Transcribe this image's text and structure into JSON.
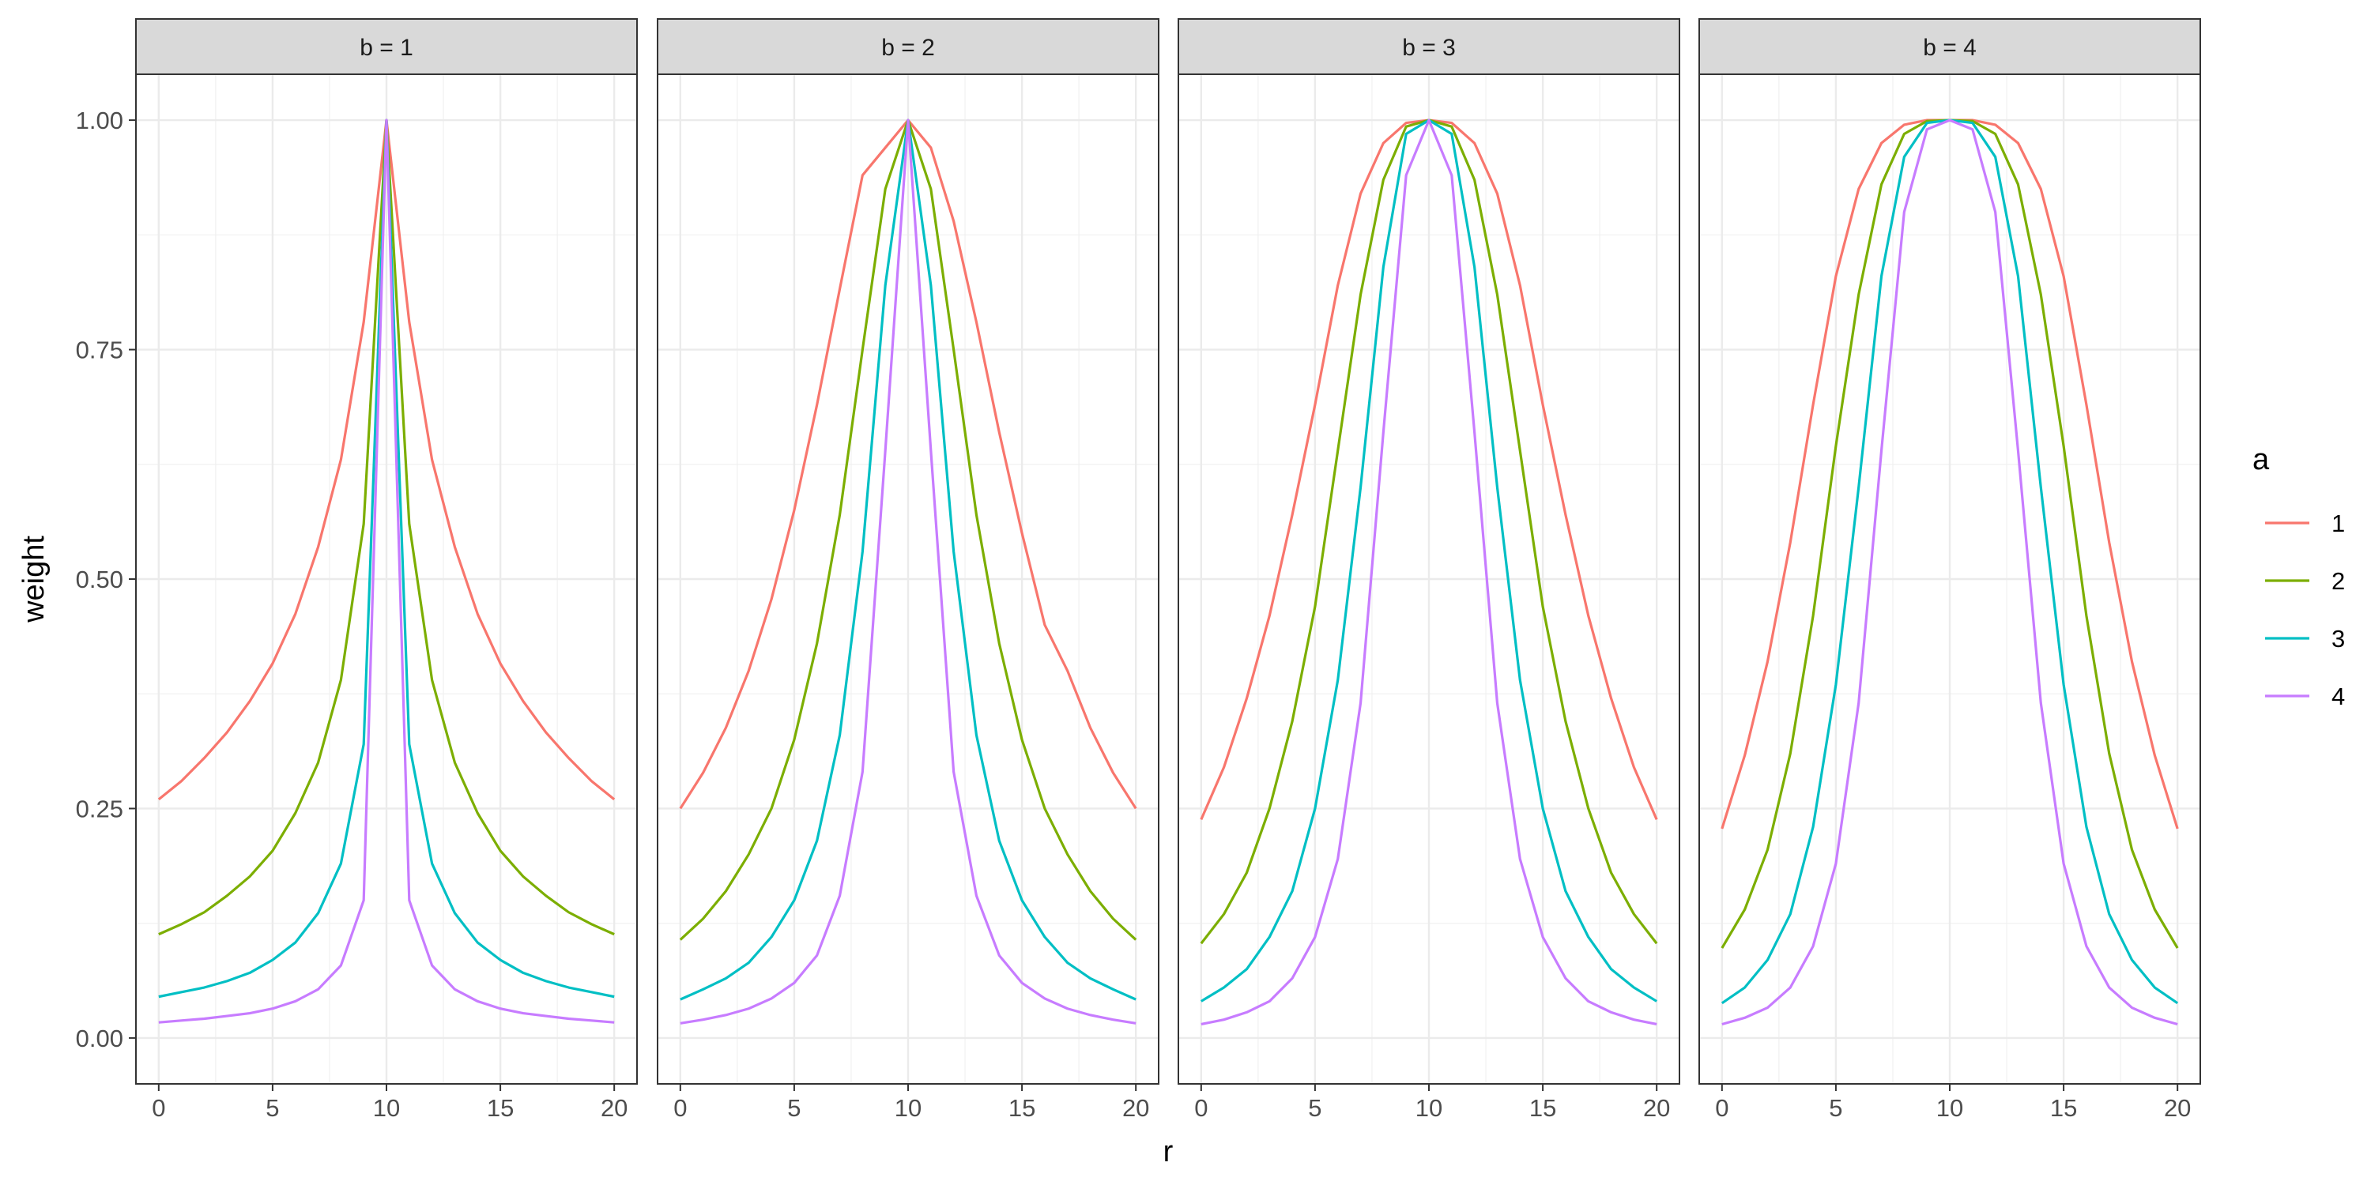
{
  "chart_data": {
    "type": "line",
    "xlabel": "r",
    "ylabel": "weight",
    "xlim": [
      -1,
      21
    ],
    "ylim": [
      -0.05,
      1.05
    ],
    "x_ticks": [
      0,
      5,
      10,
      15,
      20
    ],
    "x_tick_labels": [
      "0",
      "5",
      "10",
      "15",
      "20"
    ],
    "y_ticks": [
      0,
      0.25,
      0.5,
      0.75,
      1
    ],
    "y_tick_labels": [
      "0.00",
      "0.25",
      "0.50",
      "0.75",
      "1.00"
    ],
    "grid": true,
    "legend": {
      "title": "a",
      "placement": "right",
      "entries": [
        "1",
        "2",
        "3",
        "4"
      ]
    },
    "series_colors": [
      "#F8766D",
      "#7CAE00",
      "#00BFC4",
      "#C77CFF"
    ],
    "x": [
      0,
      1,
      2,
      3,
      4,
      5,
      6,
      7,
      8,
      9,
      10,
      11,
      12,
      13,
      14,
      15,
      16,
      17,
      18,
      19,
      20
    ],
    "facets": [
      {
        "label": "b = 1",
        "series": [
          {
            "name": "1",
            "values": [
              0.26,
              0.28,
              0.305,
              0.333,
              0.367,
              0.408,
              0.462,
              0.535,
              0.63,
              0.78,
              1.0,
              0.78,
              0.63,
              0.535,
              0.462,
              0.408,
              0.367,
              0.333,
              0.305,
              0.28,
              0.26
            ]
          },
          {
            "name": "2",
            "values": [
              0.113,
              0.124,
              0.137,
              0.155,
              0.176,
              0.204,
              0.245,
              0.3,
              0.39,
              0.56,
              1.0,
              0.56,
              0.39,
              0.3,
              0.245,
              0.204,
              0.176,
              0.155,
              0.137,
              0.124,
              0.113
            ]
          },
          {
            "name": "3",
            "values": [
              0.045,
              0.05,
              0.055,
              0.062,
              0.071,
              0.085,
              0.104,
              0.136,
              0.19,
              0.32,
              1.0,
              0.32,
              0.19,
              0.136,
              0.104,
              0.085,
              0.071,
              0.062,
              0.055,
              0.05,
              0.045
            ]
          },
          {
            "name": "4",
            "values": [
              0.017,
              0.019,
              0.021,
              0.024,
              0.027,
              0.032,
              0.04,
              0.053,
              0.079,
              0.15,
              1.0,
              0.15,
              0.079,
              0.053,
              0.04,
              0.032,
              0.027,
              0.024,
              0.021,
              0.019,
              0.017
            ]
          }
        ]
      },
      {
        "label": "b = 2",
        "series": [
          {
            "name": "1",
            "values": [
              0.25,
              0.289,
              0.338,
              0.4,
              0.478,
              0.575,
              0.69,
              0.816,
              0.94,
              0.97,
              1.0,
              0.97,
              0.89,
              0.78,
              0.66,
              0.55,
              0.45,
              0.4,
              0.338,
              0.289,
              0.25
            ]
          },
          {
            "name": "2",
            "values": [
              0.107,
              0.13,
              0.16,
              0.2,
              0.25,
              0.325,
              0.43,
              0.57,
              0.75,
              0.925,
              1.0,
              0.925,
              0.75,
              0.57,
              0.43,
              0.325,
              0.25,
              0.2,
              0.16,
              0.13,
              0.107
            ]
          },
          {
            "name": "3",
            "values": [
              0.042,
              0.053,
              0.065,
              0.082,
              0.11,
              0.15,
              0.215,
              0.33,
              0.53,
              0.82,
              1.0,
              0.82,
              0.53,
              0.33,
              0.215,
              0.15,
              0.11,
              0.082,
              0.065,
              0.053,
              0.042
            ]
          },
          {
            "name": "4",
            "values": [
              0.016,
              0.02,
              0.025,
              0.032,
              0.043,
              0.06,
              0.09,
              0.155,
              0.29,
              0.64,
              1.0,
              0.64,
              0.29,
              0.155,
              0.09,
              0.06,
              0.043,
              0.032,
              0.025,
              0.02,
              0.016
            ]
          }
        ]
      },
      {
        "label": "b = 3",
        "series": [
          {
            "name": "1",
            "values": [
              0.238,
              0.295,
              0.37,
              0.46,
              0.57,
              0.69,
              0.82,
              0.92,
              0.975,
              0.997,
              1.0,
              0.997,
              0.975,
              0.92,
              0.82,
              0.69,
              0.57,
              0.46,
              0.37,
              0.295,
              0.238
            ]
          },
          {
            "name": "2",
            "values": [
              0.103,
              0.135,
              0.18,
              0.25,
              0.345,
              0.47,
              0.64,
              0.81,
              0.935,
              0.993,
              1.0,
              0.993,
              0.935,
              0.81,
              0.64,
              0.47,
              0.345,
              0.25,
              0.18,
              0.135,
              0.103
            ]
          },
          {
            "name": "3",
            "values": [
              0.04,
              0.055,
              0.075,
              0.11,
              0.16,
              0.25,
              0.39,
              0.6,
              0.84,
              0.985,
              1.0,
              0.985,
              0.84,
              0.6,
              0.39,
              0.25,
              0.16,
              0.11,
              0.075,
              0.055,
              0.04
            ]
          },
          {
            "name": "4",
            "values": [
              0.015,
              0.02,
              0.028,
              0.04,
              0.065,
              0.11,
              0.195,
              0.365,
              0.66,
              0.94,
              1.0,
              0.94,
              0.66,
              0.365,
              0.195,
              0.11,
              0.065,
              0.04,
              0.028,
              0.02,
              0.015
            ]
          }
        ]
      },
      {
        "label": "b = 4",
        "series": [
          {
            "name": "1",
            "values": [
              0.228,
              0.308,
              0.41,
              0.54,
              0.69,
              0.83,
              0.925,
              0.975,
              0.995,
              1.0,
              1.0,
              1.0,
              0.995,
              0.975,
              0.925,
              0.83,
              0.69,
              0.54,
              0.41,
              0.308,
              0.228
            ]
          },
          {
            "name": "2",
            "values": [
              0.098,
              0.14,
              0.205,
              0.31,
              0.46,
              0.645,
              0.81,
              0.93,
              0.985,
              0.999,
              1.0,
              0.999,
              0.985,
              0.93,
              0.81,
              0.645,
              0.46,
              0.31,
              0.205,
              0.14,
              0.098
            ]
          },
          {
            "name": "3",
            "values": [
              0.038,
              0.055,
              0.085,
              0.135,
              0.23,
              0.385,
              0.6,
              0.83,
              0.96,
              0.997,
              1.0,
              0.997,
              0.96,
              0.83,
              0.6,
              0.385,
              0.23,
              0.135,
              0.085,
              0.055,
              0.038
            ]
          },
          {
            "name": "4",
            "values": [
              0.015,
              0.022,
              0.033,
              0.055,
              0.1,
              0.19,
              0.365,
              0.64,
              0.9,
              0.99,
              1.0,
              0.99,
              0.9,
              0.64,
              0.365,
              0.19,
              0.1,
              0.055,
              0.033,
              0.022,
              0.015
            ]
          }
        ]
      }
    ]
  }
}
